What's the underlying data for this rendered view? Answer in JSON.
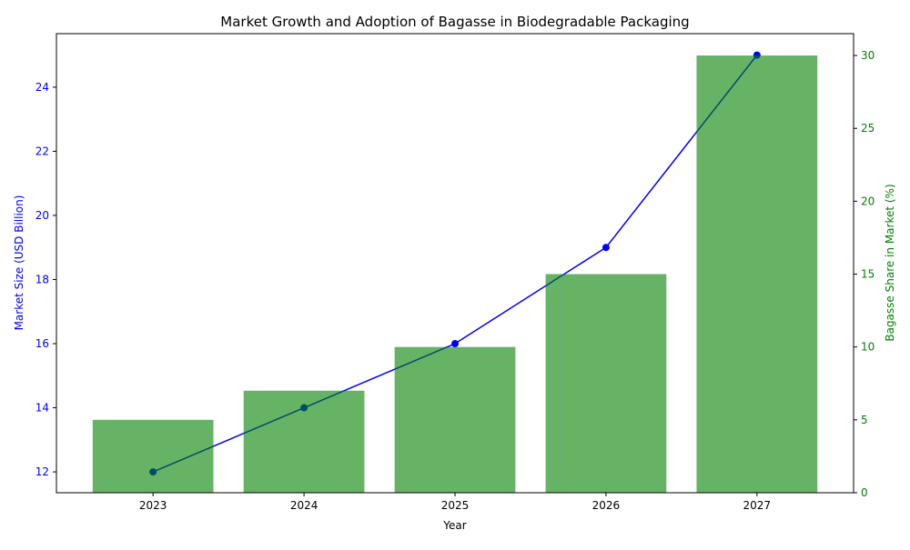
{
  "chart_data": {
    "type": "bar+line",
    "title": "Market Growth and Adoption of Bagasse in Biodegradable Packaging",
    "xlabel": "Year",
    "ylabel_left": "Market Size (USD Billion)",
    "ylabel_right": "Bagasse Share in Market (%)",
    "categories": [
      "2023",
      "2024",
      "2025",
      "2026",
      "2027"
    ],
    "line_series": {
      "axis": "left",
      "values": [
        12,
        14,
        16,
        19,
        25
      ],
      "color": "#0000ff"
    },
    "bar_series": {
      "axis": "right",
      "values": [
        5,
        7,
        10,
        15,
        30
      ],
      "color": "#008000",
      "opacity": 0.6
    },
    "ylim_left": [
      11.35,
      25.67
    ],
    "ylim_right": [
      0,
      31.5
    ],
    "yticks_left": [
      12,
      14,
      16,
      18,
      20,
      22,
      24
    ],
    "yticks_right": [
      0,
      5,
      10,
      15,
      20,
      25,
      30
    ],
    "left_axis_color": "#0000ff",
    "right_axis_color": "#008000",
    "grid": false
  }
}
